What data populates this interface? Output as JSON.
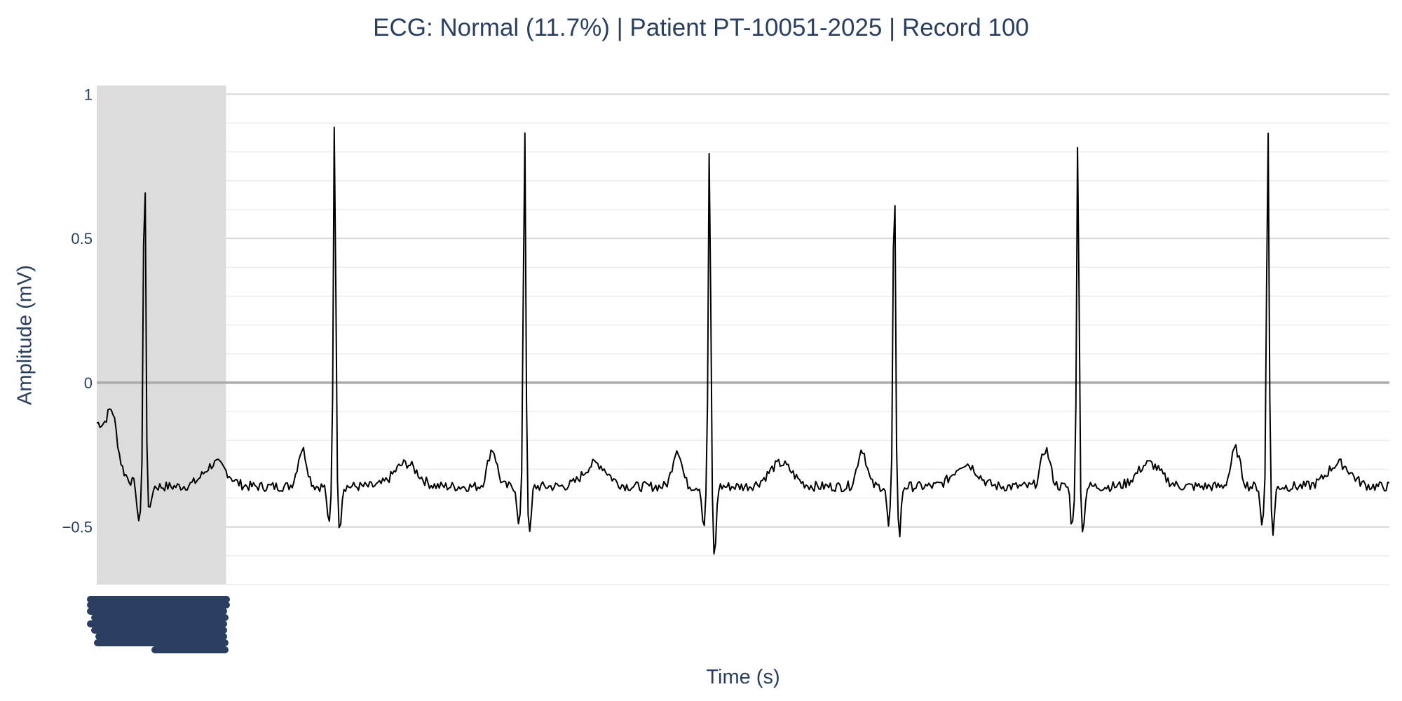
{
  "chart_data": {
    "type": "line",
    "title": "ECG: Normal (11.7%) | Patient PT-10051-2025 | Record 100",
    "xlabel": "Time (s)",
    "ylabel": "Amplitude (mV)",
    "ylim": [
      -0.7,
      1.03
    ],
    "xlim": [
      0,
      10
    ],
    "yticks": [
      -0.5,
      0,
      0.5,
      1
    ],
    "ytick_labels": [
      "−0.5",
      "0",
      "0.5",
      "1"
    ],
    "grid": true,
    "legend": "none",
    "highlight_region": {
      "x0": 0,
      "x1": 1.0,
      "color": "#dcdcdc"
    },
    "baseline_level": -0.36,
    "beats": [
      {
        "t": 0.37,
        "r_peak": 0.82,
        "s_trough": -0.45
      },
      {
        "t": 1.84,
        "r_peak": 0.94,
        "s_trough": -0.5
      },
      {
        "t": 3.31,
        "r_peak": 0.92,
        "s_trough": -0.53
      },
      {
        "t": 4.74,
        "r_peak": 0.84,
        "s_trough": -0.61
      },
      {
        "t": 6.17,
        "r_peak": 0.79,
        "s_trough": -0.53
      },
      {
        "t": 7.59,
        "r_peak": 0.85,
        "s_trough": -0.52
      },
      {
        "t": 9.06,
        "r_peak": 0.93,
        "s_trough": -0.52
      }
    ],
    "colors": {
      "trace": "#000000",
      "grid": "#e5e5e5",
      "zeroline": "#aaaaaa",
      "highlight": "#dcdcdc",
      "text": "#2a3f5f"
    }
  }
}
